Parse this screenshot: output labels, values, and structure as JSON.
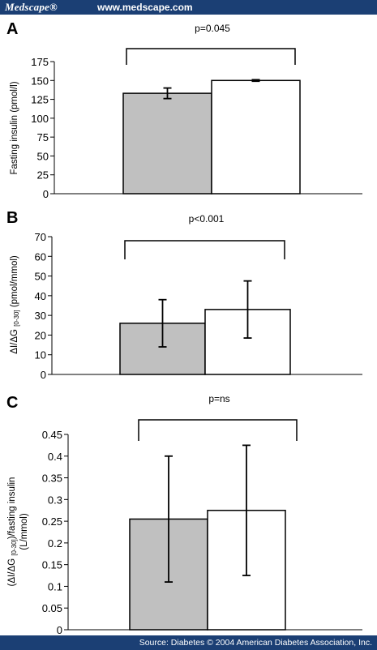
{
  "header": {
    "brand": "Medscape®",
    "site": "www.medscape.com"
  },
  "footer": {
    "source": "Source: Diabetes © 2004 American Diabetes Association, Inc."
  },
  "colors": {
    "bar1": "#c0c0c0",
    "bar2": "#ffffff",
    "bars_stroke": "#000000",
    "header_bg": "#1b3f74"
  },
  "chart_data": [
    {
      "type": "bar",
      "panel": "A",
      "ylabel": "Fasting insulin (pmol/l)",
      "ylim": [
        0,
        175
      ],
      "yticks": [
        "0",
        "25",
        "50",
        "75",
        "100",
        "125",
        "150",
        "175"
      ],
      "tick_step": 25,
      "annotation": "p=0.045",
      "grid": false,
      "values": [
        133,
        150
      ],
      "errors": [
        7,
        1
      ]
    },
    {
      "type": "bar",
      "panel": "B",
      "ylabel_parts": [
        "ΔI/ΔG ",
        "[0-30]",
        " (pmol/mmol)"
      ],
      "ylim": [
        0,
        70
      ],
      "yticks": [
        "0",
        "10",
        "20",
        "30",
        "40",
        "50",
        "60",
        "70"
      ],
      "tick_step": 10,
      "annotation": "p<0.001",
      "grid": false,
      "values": [
        26,
        33
      ],
      "errors": [
        12,
        14.5
      ]
    },
    {
      "type": "bar",
      "panel": "C",
      "ylabel_parts": [
        "(ΔI/ΔG ",
        "[0-30]",
        ")/fasting insulin"
      ],
      "ylabel2": "(L/mmol)",
      "ylim": [
        0,
        0.45
      ],
      "yticks": [
        "0",
        "0.05",
        "0.1",
        "0.15",
        "0.2",
        "0.25",
        "0.3",
        "0.35",
        "0.4",
        "0.45"
      ],
      "tick_step": 0.05,
      "annotation": "p=ns",
      "grid": false,
      "values": [
        0.255,
        0.275
      ],
      "errors": [
        0.145,
        0.15
      ]
    }
  ]
}
